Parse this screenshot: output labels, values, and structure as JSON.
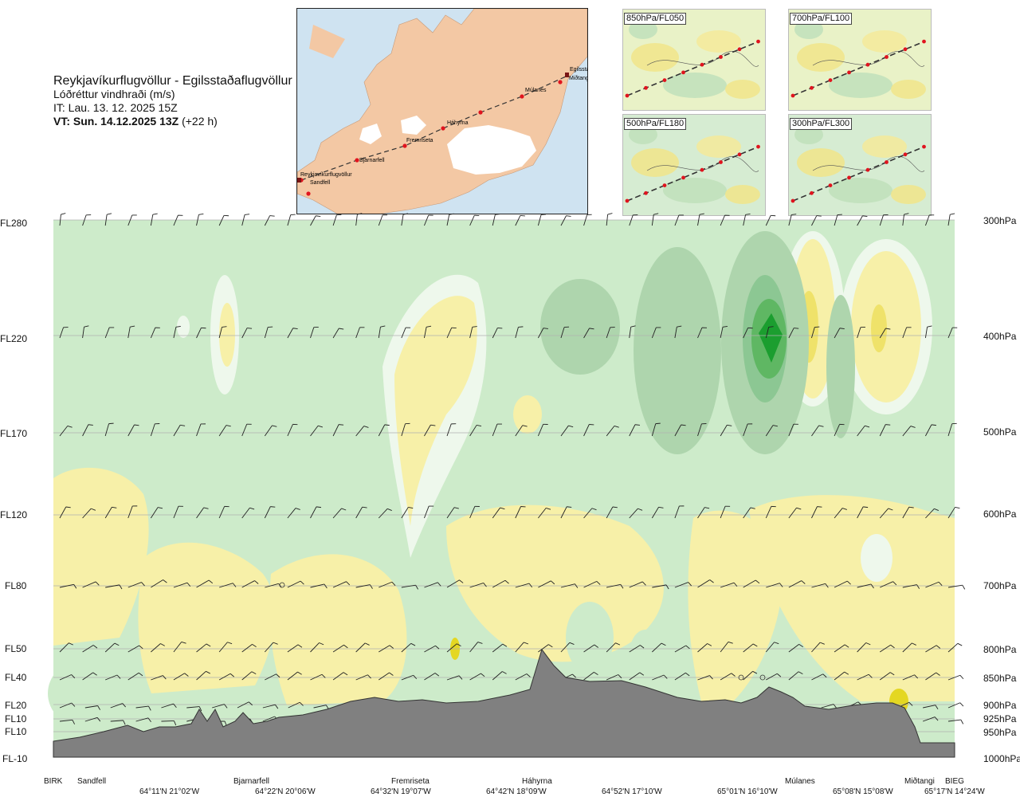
{
  "header": {
    "route": "Reykjavíkurflugvöllur - Egilsstaðaflugvöllur",
    "parameter": "Lóðréttur vindhraði (m/s)",
    "issue_time": "IT: Lau. 13. 12. 2025 15Z",
    "valid_time_bold": "VT: Sun. 14.12.2025 13Z",
    "valid_offset": "(+22 h)"
  },
  "map": {
    "places": [
      "Reykjavíkurflugvöllur",
      "Sandfell",
      "Bjarnarfell",
      "Fremriseta",
      "Háhyrna",
      "Múlanes",
      "Egilsstaðir",
      "Miðtangi"
    ],
    "colors": {
      "sea": "#cfe3f1",
      "land": "#f3c8a4",
      "ice": "#ffffff",
      "route": "#333333",
      "point": "#e0141e"
    }
  },
  "mini_maps": [
    {
      "label": "850hPa/FL050"
    },
    {
      "label": "700hPa/FL100"
    },
    {
      "label": "500hPa/FL180"
    },
    {
      "label": "300hPa/FL300"
    }
  ],
  "levels": [
    {
      "fl": "FL280",
      "hpa": "300hPa"
    },
    {
      "fl": "FL220",
      "hpa": "400hPa"
    },
    {
      "fl": "FL170",
      "hpa": "500hPa"
    },
    {
      "fl": "FL120",
      "hpa": "600hPa"
    },
    {
      "fl": "FL80",
      "hpa": "700hPa"
    },
    {
      "fl": "FL50",
      "hpa": "800hPa"
    },
    {
      "fl": "FL40",
      "hpa": "850hPa"
    },
    {
      "fl": "FL20",
      "hpa": "900hPa"
    },
    {
      "fl": "FL10",
      "hpa": "925hPa"
    },
    {
      "fl": "FL10",
      "hpa": "950hPa"
    },
    {
      "fl": "FL-10",
      "hpa": "1000hPa"
    }
  ],
  "waypoints": [
    "BIRK",
    "Sandfell",
    "Bjarnarfell",
    "Fremriseta",
    "Háhyrna",
    "Múlanes",
    "Miðtangi",
    "BIEG"
  ],
  "coords": [
    "64°11'N 21°02'W",
    "64°22'N 20°06'W",
    "64°32'N 19°07'W",
    "64°42'N 18°09'W",
    "64°52'N 17°10'W",
    "65°01'N 16°10'W",
    "65°08'N 15°08'W",
    "65°17'N 14°24'W"
  ],
  "chart_data": {
    "type": "heatmap",
    "x_axis": "route position",
    "y_axis": "pressure level (hPa)",
    "y_levels_hpa": [
      300,
      400,
      500,
      600,
      700,
      800,
      850,
      900,
      925,
      950,
      1000
    ],
    "colors": {
      "downdraft_strong": "#1b9e2f",
      "downdraft_medium": "#5fb763",
      "downdraft_light": "#8cc793",
      "downdraft_weak": "#aed5ad",
      "neutral": "#cdebca",
      "weak_pos": "#eef8ec",
      "weak_pos2": "#ffffe0",
      "updraft_light": "#f7f0a8",
      "updraft_medium": "#efe26a",
      "updraft_strong": "#e4d722",
      "terrain": "#808080"
    },
    "grid": true,
    "legend": "none"
  }
}
